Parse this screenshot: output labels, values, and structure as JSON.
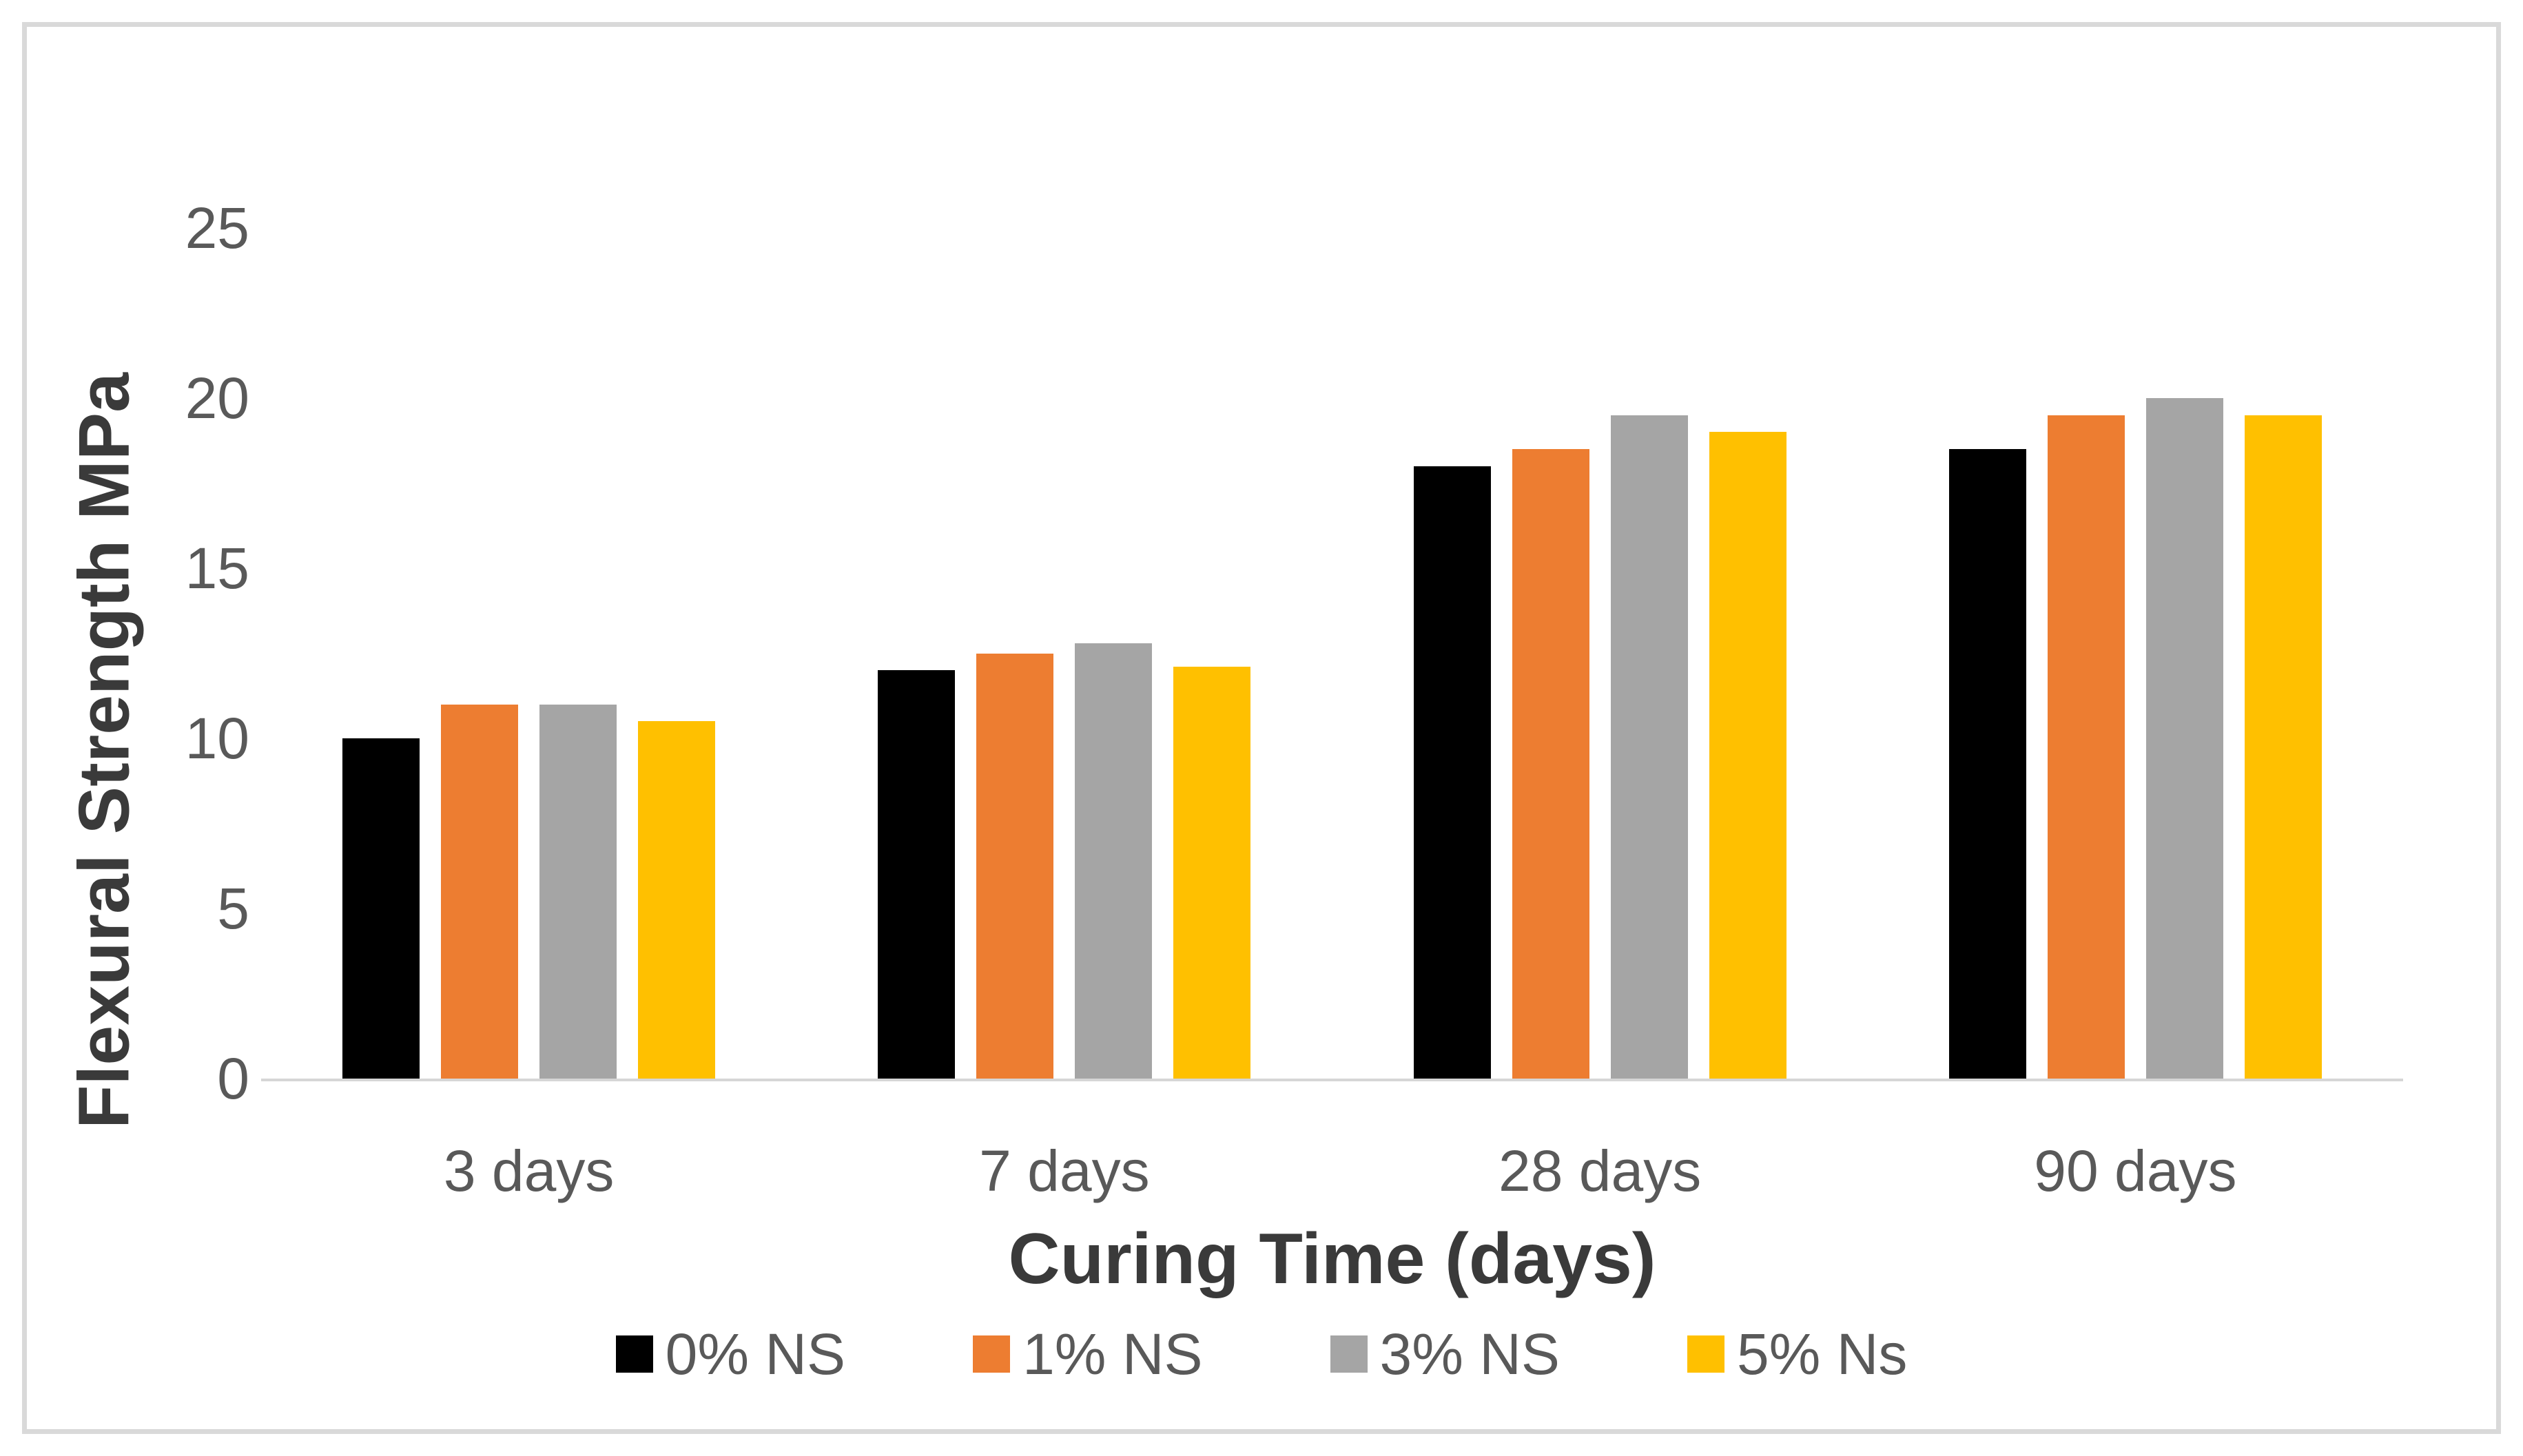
{
  "chart_data": {
    "type": "bar",
    "title": "",
    "xlabel": "Curing Time (days)",
    "ylabel": "Flexural Strength MPa",
    "categories": [
      "3 days",
      "7 days",
      "28 days",
      "90 days"
    ],
    "series": [
      {
        "name": "0% NS",
        "color": "#000000",
        "values": [
          10,
          12,
          18,
          18.5
        ]
      },
      {
        "name": "1% NS",
        "color": "#ED7D31",
        "values": [
          11,
          12.5,
          18.5,
          19.5
        ]
      },
      {
        "name": "3% NS",
        "color": "#A5A5A5",
        "values": [
          11,
          12.8,
          19.5,
          20
        ]
      },
      {
        "name": "5% Ns",
        "color": "#FFC000",
        "values": [
          10.5,
          12.1,
          19,
          19.5
        ]
      }
    ],
    "ylim": [
      0,
      25
    ],
    "yticks": [
      0,
      5,
      10,
      15,
      20,
      25
    ],
    "grid": false,
    "legend_position": "bottom",
    "colors": {
      "axis_line": "#D6D6D6",
      "tick_text": "#595959",
      "title_text": "#3A3A3A",
      "figure_border": "#D9D9D9"
    }
  }
}
